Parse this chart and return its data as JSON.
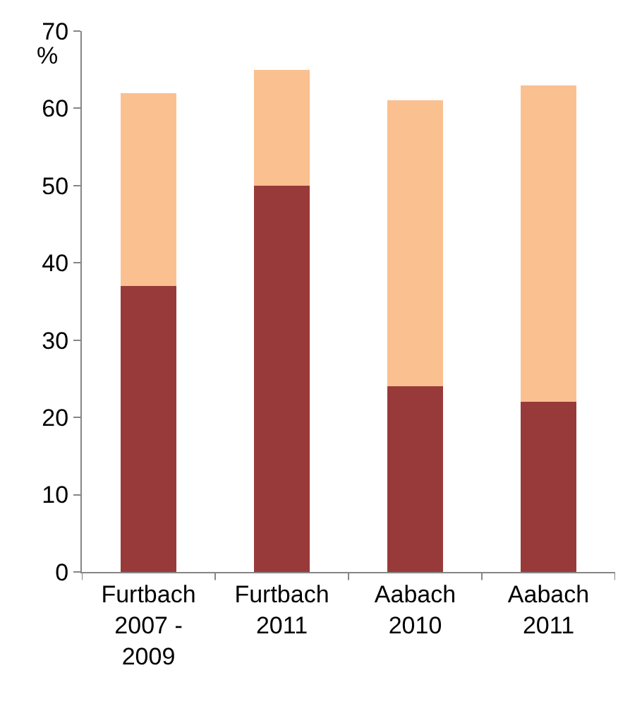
{
  "chart_data": {
    "type": "bar",
    "stacked": true,
    "ylabel": "%",
    "categories": [
      "Furtbach\n2007 -\n2009",
      "Furtbach\n2011",
      "Aabach\n2010",
      "Aabach\n2011"
    ],
    "series": [
      {
        "color": "#993a3a",
        "values": [
          37,
          50,
          24,
          22
        ]
      },
      {
        "color": "#fac090",
        "values": [
          25,
          15,
          37,
          41
        ]
      }
    ],
    "ylim": [
      0,
      70
    ],
    "yticks": [
      0,
      10,
      20,
      30,
      40,
      50,
      60,
      70
    ]
  }
}
